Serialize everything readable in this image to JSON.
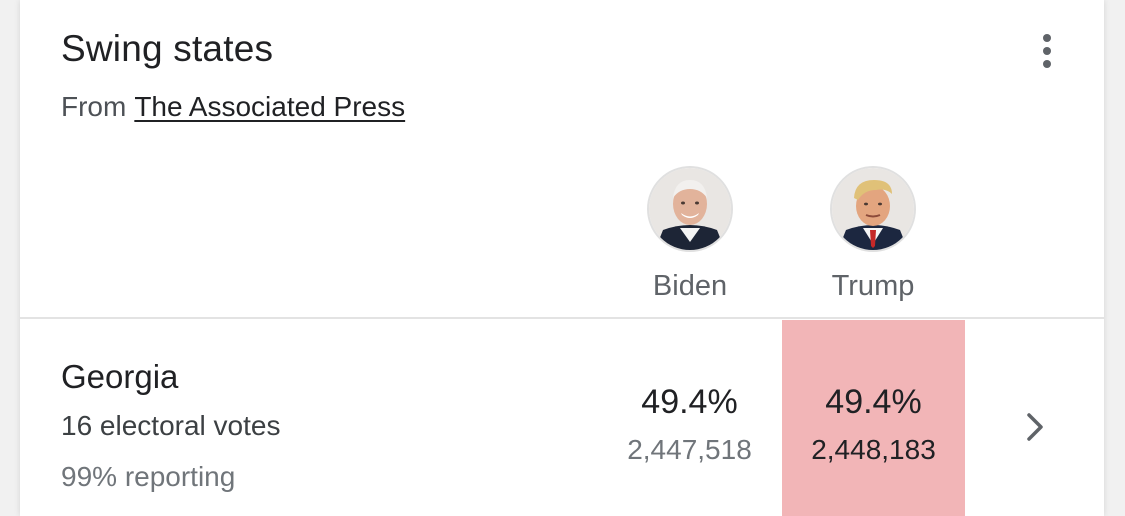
{
  "card": {
    "title": "Swing states",
    "source_prefix": "From",
    "source_link": "The Associated Press",
    "menu_icon": "more-vert-icon"
  },
  "candidates": [
    {
      "name": "Biden",
      "avatar": "biden-avatar"
    },
    {
      "name": "Trump",
      "avatar": "trump-avatar"
    }
  ],
  "states": [
    {
      "name": "Georgia",
      "electoral_votes": "16 electoral votes",
      "reporting": "99% reporting",
      "biden_pct": "49.4%",
      "biden_votes": "2,447,518",
      "trump_pct": "49.4%",
      "trump_votes": "2,448,183",
      "leader": "Trump",
      "leader_color": "#f2b5b7",
      "chevron_icon": "chevron-right-icon"
    }
  ]
}
